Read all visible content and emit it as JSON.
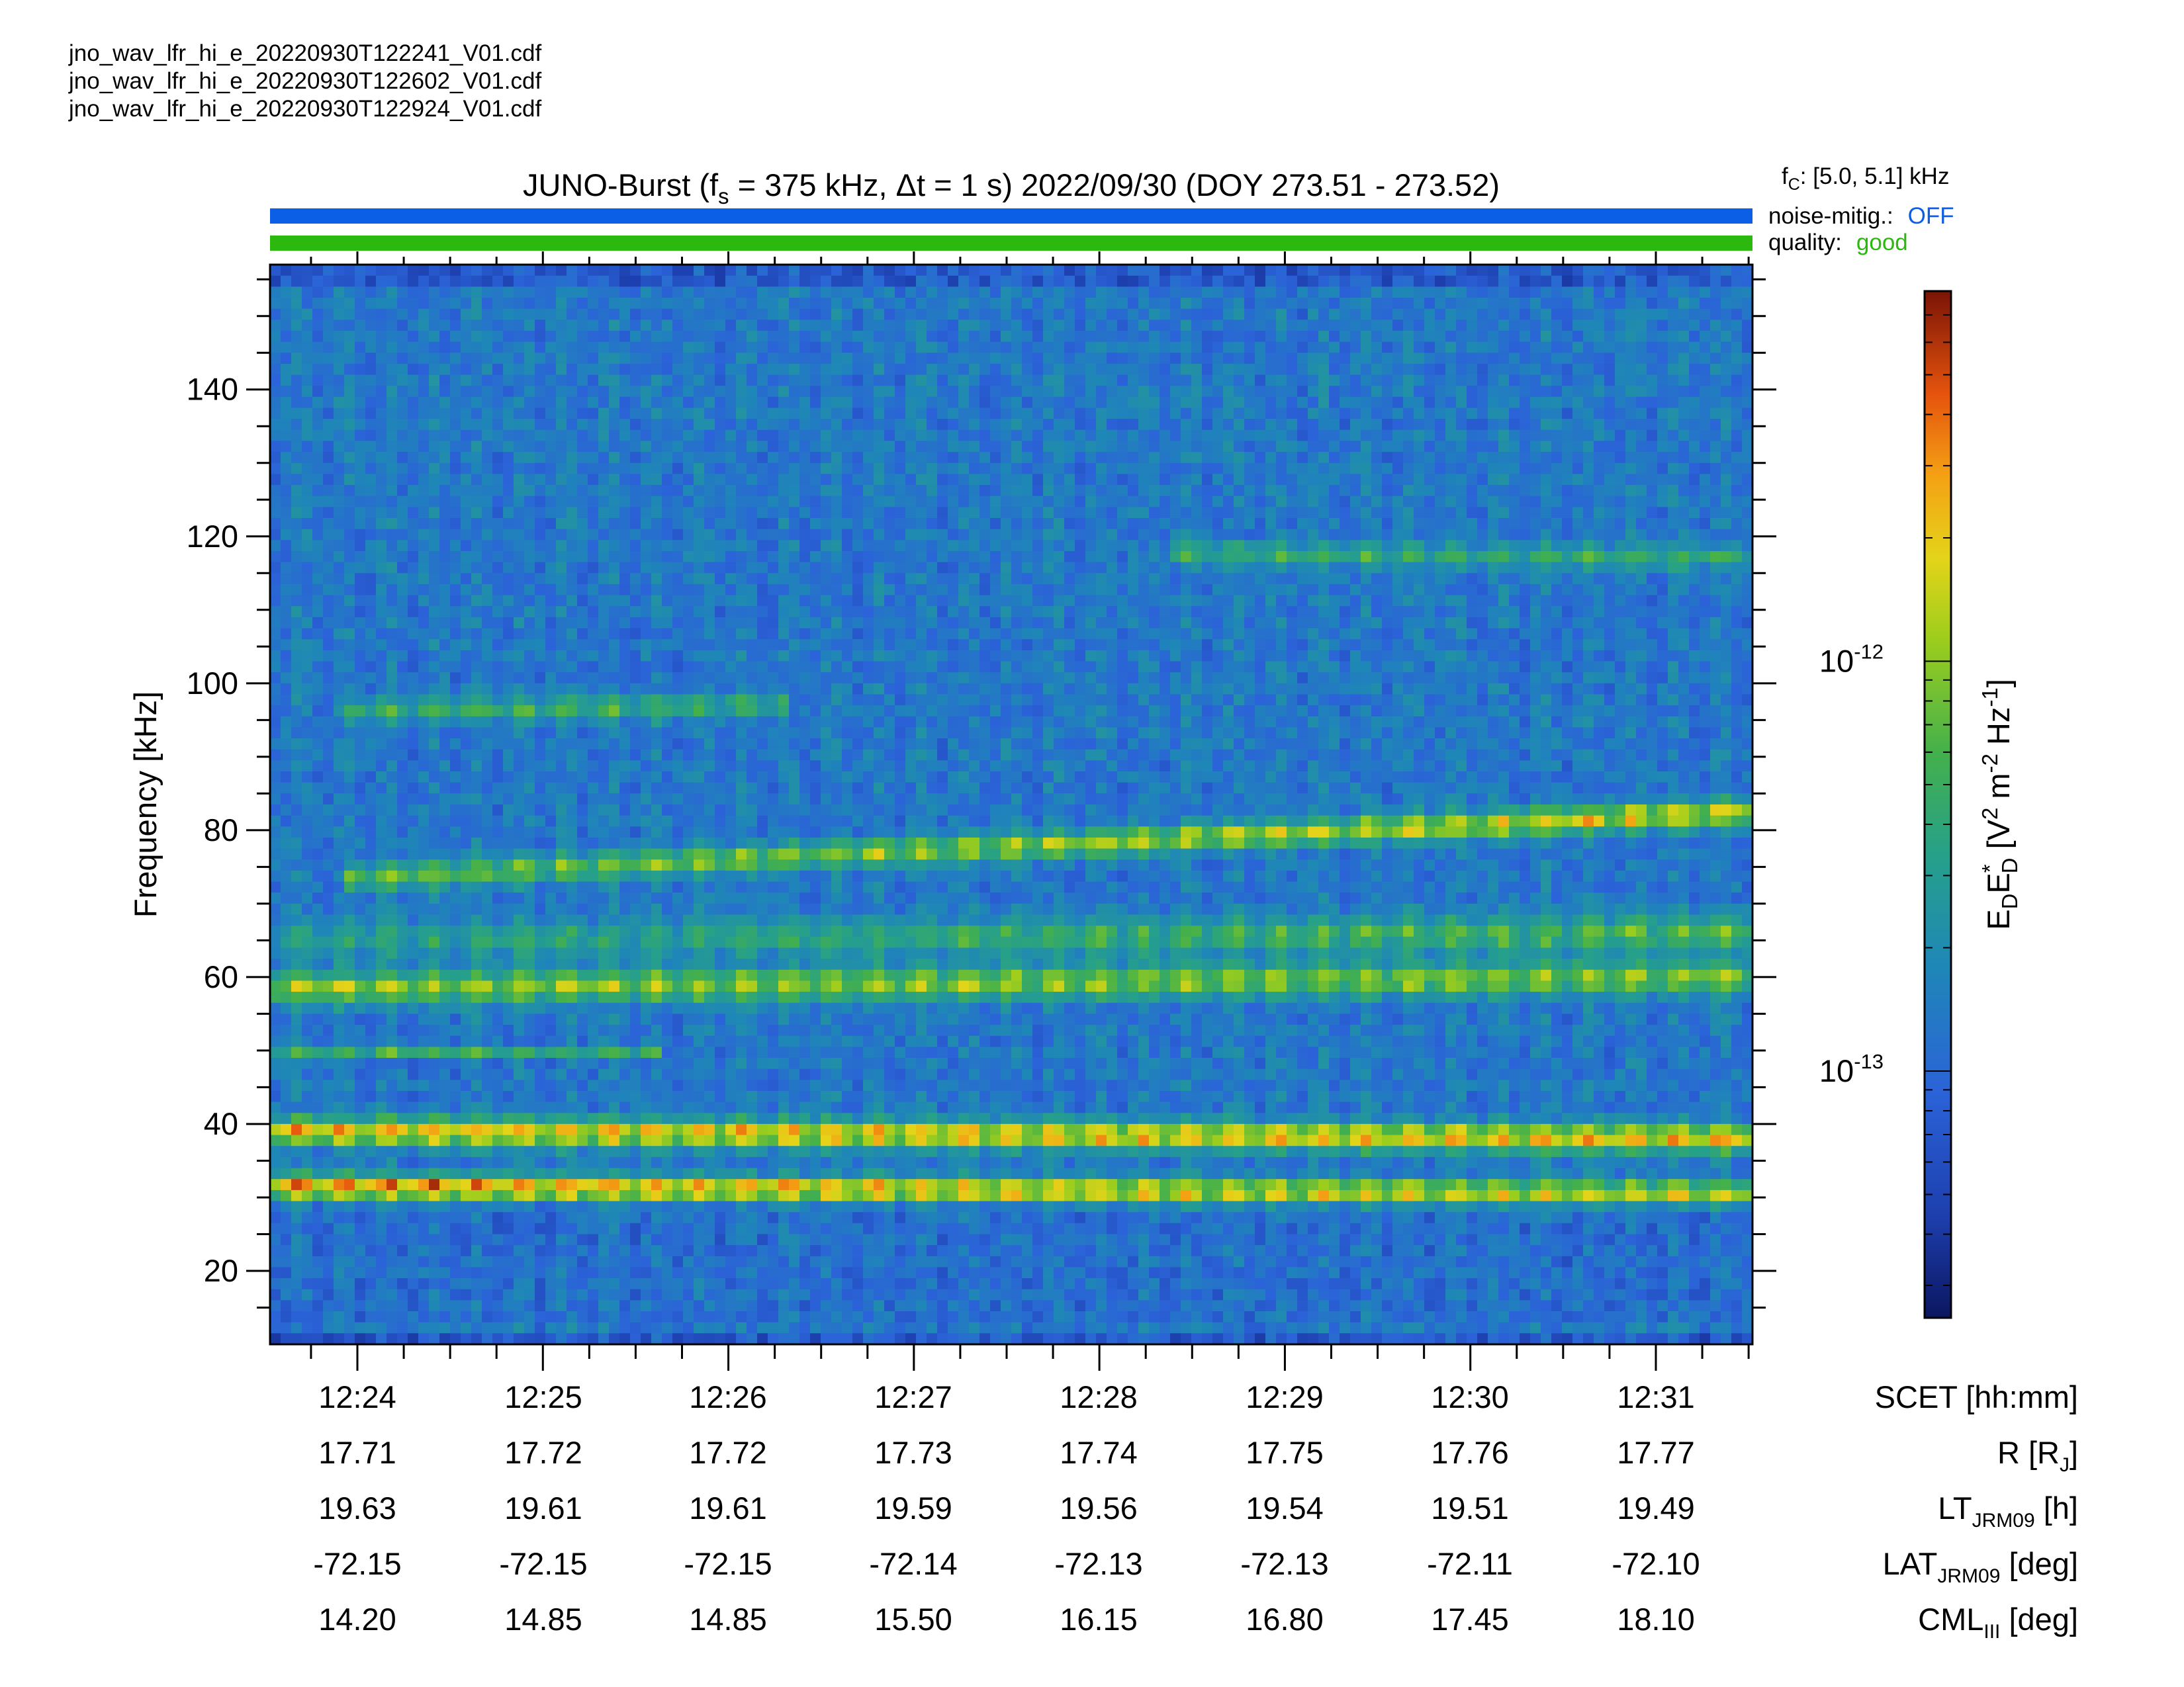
{
  "source_files": [
    "jno_wav_lfr_hi_e_20220930T122241_V01.cdf",
    "jno_wav_lfr_hi_e_20220930T122602_V01.cdf",
    "jno_wav_lfr_hi_e_20220930T122924_V01.cdf"
  ],
  "header": {
    "title_pre": "JUNO-Burst (f",
    "title_sub": "s",
    "title_mid": " = 375 kHz, Δt = 1 s)  2022/09/30 (DOY 273.51 - 273.52)",
    "fc_sym": "f",
    "fc_sub": "C",
    "fc_value": ": [5.0, 5.1] kHz",
    "noise_label": "noise-mitig.:",
    "noise_value": "OFF",
    "quality_label": "quality:",
    "quality_value": "good"
  },
  "colors": {
    "noise_bar": "#0a5fe6",
    "quality_bar": "#2bb80f",
    "noise_value": "#0a5fe6",
    "quality_value": "#2bb80f"
  },
  "ephemeris": {
    "rows": [
      {
        "label": "SCET [hh:mm]",
        "label_sub": "",
        "label_suffix": "",
        "values": [
          "12:24",
          "12:25",
          "12:26",
          "12:27",
          "12:28",
          "12:29",
          "12:30",
          "12:31"
        ]
      },
      {
        "label": "R [R",
        "label_sub": "J",
        "label_suffix": "]",
        "values": [
          "17.71",
          "17.72",
          "17.72",
          "17.73",
          "17.74",
          "17.75",
          "17.76",
          "17.77"
        ]
      },
      {
        "label": "LT",
        "label_sub": "JRM09",
        "label_suffix": " [h]",
        "values": [
          "19.63",
          "19.61",
          "19.61",
          "19.59",
          "19.56",
          "19.54",
          "19.51",
          "19.49"
        ]
      },
      {
        "label": "LAT",
        "label_sub": "JRM09",
        "label_suffix": " [deg]",
        "values": [
          "-72.15",
          "-72.15",
          "-72.15",
          "-72.14",
          "-72.13",
          "-72.13",
          "-72.11",
          "-72.10"
        ]
      },
      {
        "label": "CML",
        "label_sub": "III",
        "label_suffix": " [deg]",
        "values": [
          "14.20",
          "14.85",
          "14.85",
          "15.50",
          "16.15",
          "16.80",
          "17.45",
          "18.10"
        ]
      }
    ]
  },
  "colorbar": {
    "label_base": "E",
    "label_sub1": "D",
    "label_mid": "E",
    "label_sup1": "*",
    "label_sub2": "D",
    "label_units_pre": " [V",
    "label_sup2": "2",
    "label_units_mid": " m",
    "label_sup3": "-2",
    "label_units_hz": " Hz",
    "label_sup4": "-1",
    "label_units_end": "]",
    "tick_base": "10",
    "ticks": [
      {
        "exp": "-12",
        "value": 1e-12
      },
      {
        "exp": "-13",
        "value": 1e-13
      }
    ],
    "range": [
      2.5e-14,
      8e-12
    ],
    "scale": "log"
  },
  "chart_data": {
    "type": "heatmap",
    "title": "JUNO-Burst (fs = 375 kHz, Δt = 1 s)  2022/09/30 (DOY 273.51 - 273.52)",
    "xlabel": "SCET [hh:mm]",
    "ylabel": "Frequency [kHz]",
    "x_range_minutes": [
      12.3833,
      12.5333
    ],
    "x_ticks": [
      "12:24",
      "12:25",
      "12:26",
      "12:27",
      "12:28",
      "12:29",
      "12:30",
      "12:31"
    ],
    "y_range": [
      10,
      157
    ],
    "y_ticks": [
      20,
      40,
      60,
      80,
      100,
      120,
      140
    ],
    "colorscale": "dark-blue to dark-red (log)",
    "emission_bands": [
      {
        "name": "",
        "freq_start_khz": 31.5,
        "freq_end_khz": 30.5,
        "time_span": [
          "12:23:35",
          "12:31:55"
        ],
        "intensity": "high to medium"
      },
      {
        "name": "",
        "freq_start_khz": 39.0,
        "freq_end_khz": 38.0,
        "time_span": [
          "12:23:35",
          "12:31:55"
        ],
        "intensity": "high"
      },
      {
        "name": "",
        "freq_start_khz": 58.5,
        "freq_end_khz": 60.0,
        "time_span": [
          "12:23:35",
          "12:31:55"
        ],
        "intensity": "medium"
      },
      {
        "name": "",
        "freq_start_khz": 73.0,
        "freq_end_khz": 82.5,
        "time_span": [
          "12:24:00",
          "12:31:55"
        ],
        "intensity": "medium to high"
      },
      {
        "name": "",
        "freq_start_khz": 96.0,
        "freq_end_khz": 99.0,
        "time_span": [
          "12:24:00",
          "12:26:30"
        ],
        "intensity": "low"
      },
      {
        "name": "",
        "freq_start_khz": 119.0,
        "freq_end_khz": 117.0,
        "time_span": [
          "12:28:40",
          "12:31:55"
        ],
        "intensity": "low"
      }
    ]
  }
}
